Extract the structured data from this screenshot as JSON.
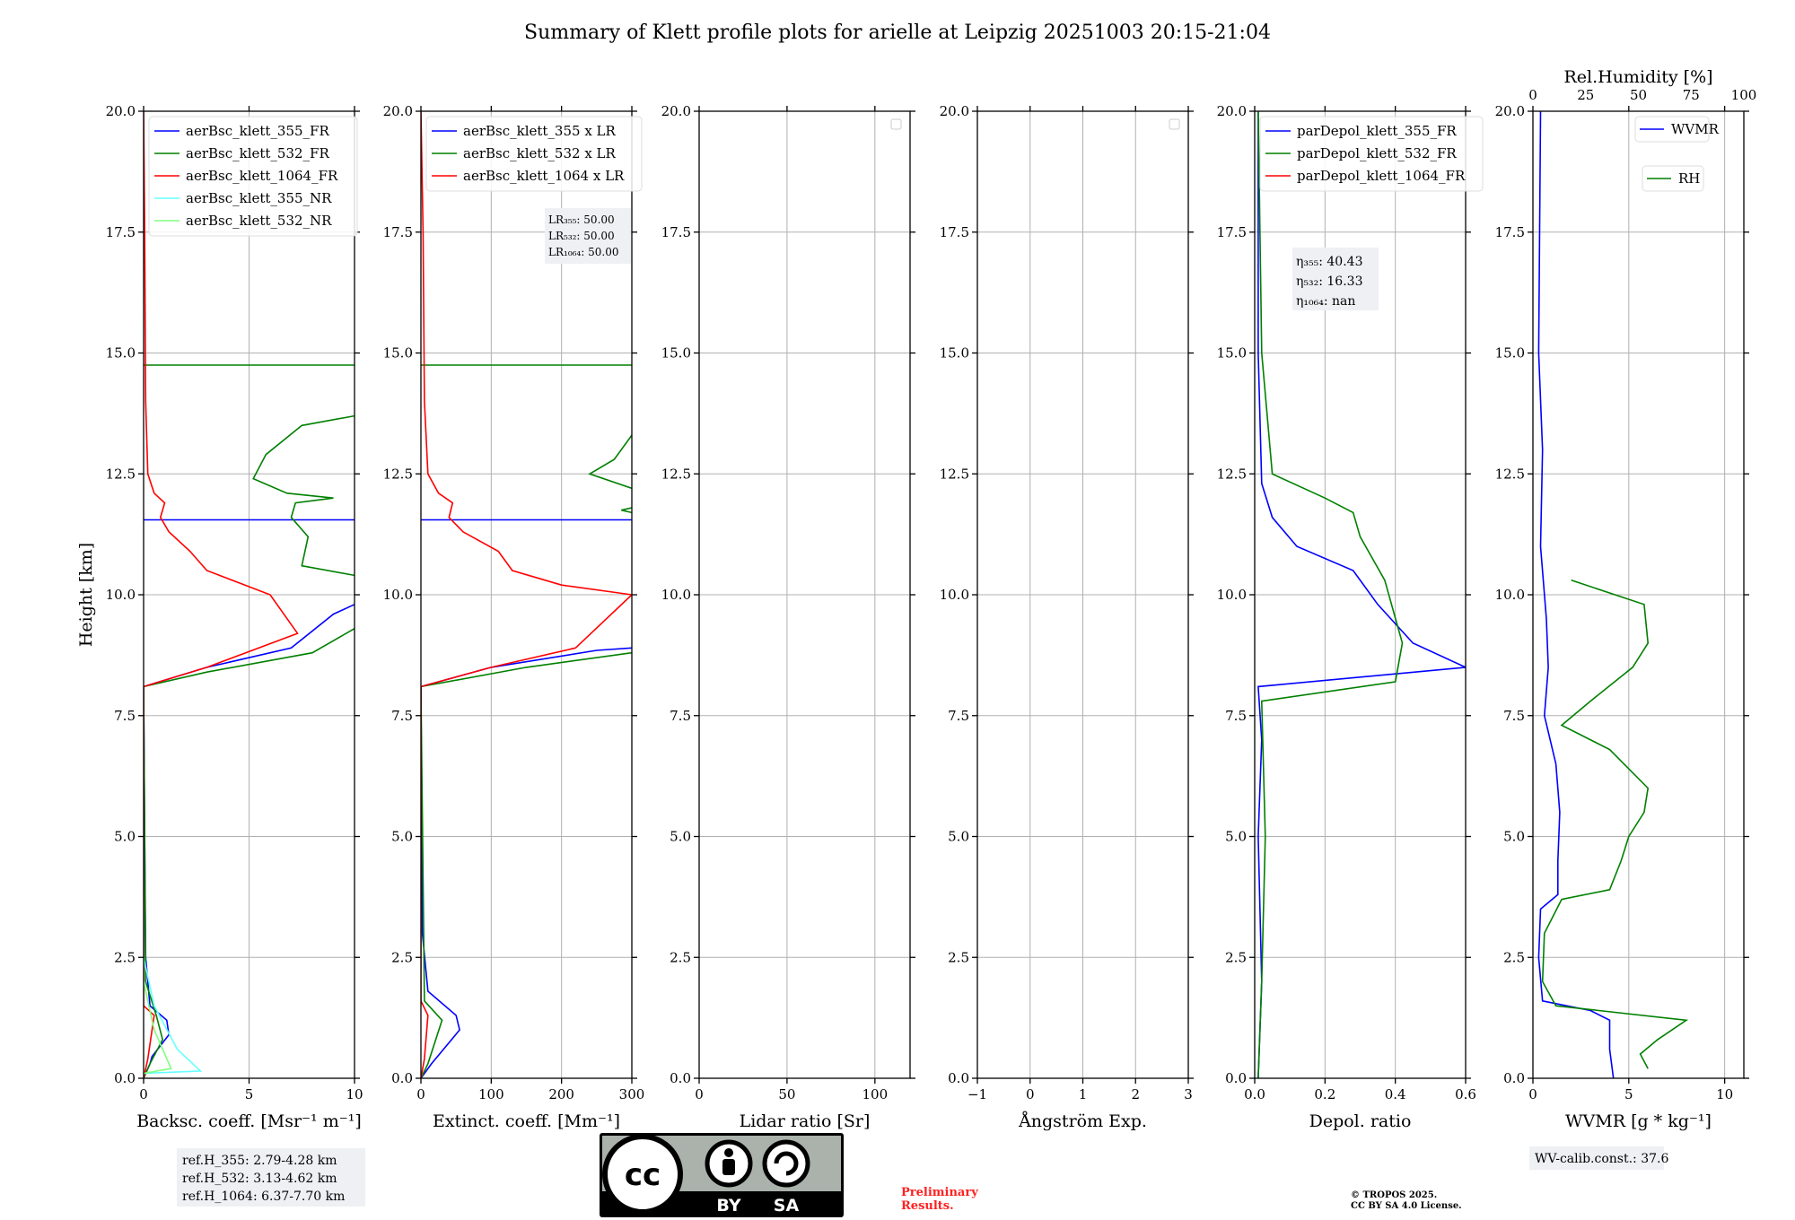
{
  "title": "Summary of Klett profile plots for arielle at Leipzig 20251003 20:15-21:04",
  "colors": {
    "blue": "#0000ff",
    "green": "#008000",
    "red": "#ff0000",
    "cyan": "#66ffff",
    "lightgreen": "#80ff80",
    "grid": "#b0b0b0",
    "box": "#eef0f3"
  },
  "chart_data": [
    {
      "type": "line",
      "id": "bsc",
      "xlabel": "Backsc. coeff. [Msr⁻¹ m⁻¹]",
      "ylabel": "Height [km]",
      "xlim": [
        0,
        10
      ],
      "ylim": [
        0,
        20
      ],
      "xticks": [
        "0",
        "5",
        "10"
      ],
      "yticks": [
        "0.0",
        "2.5",
        "5.0",
        "7.5",
        "10.0",
        "12.5",
        "15.0",
        "17.5",
        "20.0"
      ],
      "legend": [
        "aerBsc_klett_355_FR",
        "aerBsc_klett_532_FR",
        "aerBsc_klett_1064_FR",
        "aerBsc_klett_355_NR",
        "aerBsc_klett_532_NR"
      ],
      "legend_colors": [
        "blue",
        "green",
        "red",
        "cyan",
        "lightgreen"
      ],
      "series": [
        {
          "name": "aerBsc_klett_355_FR",
          "color": "blue",
          "points": [
            [
              0,
              0
            ],
            [
              0.3,
              0.3
            ],
            [
              0.4,
              0.45
            ],
            [
              1.2,
              0.9
            ],
            [
              1.1,
              1.2
            ],
            [
              0.3,
              1.5
            ],
            [
              0.1,
              2.5
            ],
            [
              0.05,
              5
            ],
            [
              0,
              8.1
            ],
            [
              3,
              8.5
            ],
            [
              7,
              8.9
            ],
            [
              9,
              9.6
            ],
            [
              10,
              9.8
            ]
          ]
        },
        {
          "name": "aerBsc_klett_355_FR_cirrus",
          "color": "blue",
          "points": [
            [
              0,
              11.55
            ],
            [
              10,
              11.55
            ]
          ]
        },
        {
          "name": "aerBsc_klett_532_FR",
          "color": "green",
          "points": [
            [
              0,
              0
            ],
            [
              0.3,
              0.3
            ],
            [
              0.9,
              0.8
            ],
            [
              0.6,
              1.3
            ],
            [
              0.1,
              2
            ],
            [
              0,
              8.1
            ],
            [
              3,
              8.4
            ],
            [
              8,
              8.8
            ],
            [
              10,
              9.3
            ]
          ]
        },
        {
          "name": "aerBsc_klett_532_FR_cirrus",
          "color": "green",
          "points": [
            [
              10,
              10.4
            ],
            [
              7.5,
              10.6
            ],
            [
              7.8,
              11.2
            ],
            [
              7,
              11.6
            ],
            [
              7.2,
              11.9
            ],
            [
              9,
              12
            ],
            [
              6.8,
              12.1
            ],
            [
              5.2,
              12.4
            ],
            [
              5.8,
              12.9
            ],
            [
              7.5,
              13.5
            ],
            [
              10,
              13.7
            ]
          ]
        },
        {
          "name": "aerBsc_klett_532_FR_top",
          "color": "green",
          "points": [
            [
              0,
              14.75
            ],
            [
              10,
              14.75
            ]
          ]
        },
        {
          "name": "aerBsc_klett_1064_FR",
          "color": "red",
          "points": [
            [
              0,
              0
            ],
            [
              0.2,
              0.4
            ],
            [
              0.5,
              1.3
            ],
            [
              0,
              1.5
            ],
            [
              0,
              8.1
            ],
            [
              3,
              8.5
            ],
            [
              7.3,
              9.2
            ],
            [
              6,
              10
            ],
            [
              3,
              10.5
            ],
            [
              2.2,
              10.9
            ],
            [
              1.2,
              11.3
            ],
            [
              0.8,
              11.6
            ],
            [
              1,
              11.9
            ],
            [
              0.5,
              12.1
            ],
            [
              0.2,
              12.5
            ],
            [
              0.1,
              14
            ],
            [
              0.05,
              17.5
            ],
            [
              0,
              20
            ]
          ]
        },
        {
          "name": "aerBsc_klett_355_NR",
          "color": "cyan",
          "points": [
            [
              0,
              0.1
            ],
            [
              2.7,
              0.15
            ],
            [
              1.6,
              0.6
            ],
            [
              0.5,
              1.5
            ],
            [
              0,
              2.5
            ]
          ]
        },
        {
          "name": "aerBsc_klett_532_NR",
          "color": "lightgreen",
          "points": [
            [
              0,
              0.1
            ],
            [
              1.3,
              0.2
            ],
            [
              0.5,
              1
            ],
            [
              0,
              2
            ]
          ]
        }
      ]
    },
    {
      "type": "line",
      "id": "ext",
      "xlabel": "Extinct. coeff. [Mm⁻¹]",
      "xlim": [
        0,
        300
      ],
      "ylim": [
        0,
        20
      ],
      "xticks": [
        "0",
        "100",
        "200",
        "300"
      ],
      "yticks": [
        "0.0",
        "2.5",
        "5.0",
        "7.5",
        "10.0",
        "12.5",
        "15.0",
        "17.5",
        "20.0"
      ],
      "legend": [
        "aerBsc_klett_355 x LR",
        "aerBsc_klett_532 x LR",
        "aerBsc_klett_1064 x LR"
      ],
      "legend_colors": [
        "blue",
        "green",
        "red"
      ],
      "lr_box": [
        "LR₃₅₅: 50.00",
        "LR₅₃₂: 50.00",
        "LR₁₀₆₄: 50.00"
      ],
      "series": [
        {
          "name": "ext_355",
          "color": "blue",
          "points": [
            [
              0,
              0
            ],
            [
              15,
              0.3
            ],
            [
              55,
              1
            ],
            [
              50,
              1.3
            ],
            [
              10,
              1.8
            ],
            [
              2,
              3
            ],
            [
              0,
              8.1
            ],
            [
              100,
              8.5
            ],
            [
              250,
              8.85
            ],
            [
              300,
              8.9
            ]
          ]
        },
        {
          "name": "ext_355_cirrus",
          "color": "blue",
          "points": [
            [
              0,
              11.55
            ],
            [
              300,
              11.55
            ]
          ]
        },
        {
          "name": "ext_532",
          "color": "green",
          "points": [
            [
              0,
              0
            ],
            [
              10,
              0.3
            ],
            [
              30,
              1.2
            ],
            [
              5,
              1.6
            ],
            [
              0,
              8.1
            ],
            [
              150,
              8.5
            ],
            [
              300,
              8.8
            ]
          ]
        },
        {
          "name": "ext_532_cirrus",
          "color": "green",
          "points": [
            [
              300,
              11.7
            ],
            [
              285,
              11.75
            ],
            [
              300,
              11.8
            ]
          ]
        },
        {
          "name": "ext_532_cirrus2",
          "color": "green",
          "points": [
            [
              300,
              12.2
            ],
            [
              240,
              12.5
            ],
            [
              275,
              12.8
            ],
            [
              300,
              13.3
            ]
          ]
        },
        {
          "name": "ext_532_top",
          "color": "green",
          "points": [
            [
              0,
              14.75
            ],
            [
              300,
              14.75
            ]
          ]
        },
        {
          "name": "ext_1064",
          "color": "red",
          "points": [
            [
              0,
              0
            ],
            [
              5,
              0.4
            ],
            [
              10,
              1.3
            ],
            [
              0,
              1.6
            ],
            [
              0,
              8.1
            ],
            [
              100,
              8.5
            ],
            [
              220,
              8.9
            ],
            [
              300,
              10
            ],
            [
              200,
              10.2
            ],
            [
              130,
              10.5
            ],
            [
              110,
              10.9
            ],
            [
              60,
              11.3
            ],
            [
              40,
              11.6
            ],
            [
              45,
              11.9
            ],
            [
              25,
              12.1
            ],
            [
              10,
              12.5
            ],
            [
              5,
              14
            ],
            [
              3,
              17.5
            ],
            [
              0,
              20
            ]
          ]
        }
      ]
    },
    {
      "type": "line",
      "id": "lr",
      "xlabel": "Lidar ratio [Sr]",
      "xlim": [
        0,
        120
      ],
      "ylim": [
        0,
        20
      ],
      "xticks": [
        "0",
        "50",
        "100"
      ],
      "yticks": [
        "0.0",
        "2.5",
        "5.0",
        "7.5",
        "10.0",
        "12.5",
        "15.0",
        "17.5",
        "20.0"
      ],
      "series": []
    },
    {
      "type": "line",
      "id": "ae",
      "xlabel": "Ångström Exp.",
      "xlim": [
        -1,
        3
      ],
      "ylim": [
        0,
        20
      ],
      "xticks": [
        "−1",
        "0",
        "1",
        "2",
        "3"
      ],
      "yticks": [
        "0.0",
        "2.5",
        "5.0",
        "7.5",
        "10.0",
        "12.5",
        "15.0",
        "17.5",
        "20.0"
      ],
      "series": []
    },
    {
      "type": "line",
      "id": "dep",
      "xlabel": "Depol. ratio",
      "xlim": [
        0,
        0.6
      ],
      "ylim": [
        0,
        20
      ],
      "xticks": [
        "0.0",
        "0.2",
        "0.4",
        "0.6"
      ],
      "yticks": [
        "0.0",
        "2.5",
        "5.0",
        "7.5",
        "10.0",
        "12.5",
        "15.0",
        "17.5",
        "20.0"
      ],
      "legend": [
        "parDepol_klett_355_FR",
        "parDepol_klett_532_FR",
        "parDepol_klett_1064_FR"
      ],
      "legend_colors": [
        "blue",
        "green",
        "red"
      ],
      "eta_box": [
        "η₃₅₅: 40.43",
        "η₅₃₂: 16.33",
        "η₁₀₆₄: nan"
      ],
      "series": [
        {
          "name": "dep_355",
          "color": "blue",
          "points": [
            [
              0.01,
              0
            ],
            [
              0.02,
              2
            ],
            [
              0.01,
              5
            ],
            [
              0.02,
              7
            ],
            [
              0.01,
              8.1
            ],
            [
              0.6,
              8.5
            ],
            [
              0.45,
              9
            ],
            [
              0.35,
              9.8
            ],
            [
              0.28,
              10.5
            ],
            [
              0.12,
              11
            ],
            [
              0.05,
              11.6
            ],
            [
              0.02,
              12.3
            ],
            [
              0.01,
              15
            ],
            [
              0.01,
              20
            ]
          ]
        },
        {
          "name": "dep_532",
          "color": "green",
          "points": [
            [
              0.01,
              0
            ],
            [
              0.02,
              2
            ],
            [
              0.03,
              5
            ],
            [
              0.02,
              7.8
            ],
            [
              0.4,
              8.2
            ],
            [
              0.42,
              9
            ],
            [
              0.37,
              10.3
            ],
            [
              0.3,
              11.2
            ],
            [
              0.28,
              11.7
            ],
            [
              0.2,
              12
            ],
            [
              0.05,
              12.5
            ],
            [
              0.02,
              15
            ],
            [
              0.01,
              20
            ]
          ]
        }
      ]
    },
    {
      "type": "line",
      "id": "wv",
      "xlabel": "WVMR [g * kg⁻¹]",
      "top_xlabel": "Rel.Humidity [%]",
      "xlim": [
        0,
        11
      ],
      "ylim": [
        0,
        20
      ],
      "xticks": [
        "0",
        "5",
        "10"
      ],
      "top_xticks": [
        "0",
        "25",
        "50",
        "75",
        "100"
      ],
      "yticks": [
        "0.0",
        "2.5",
        "5.0",
        "7.5",
        "10.0",
        "12.5",
        "15.0",
        "17.5",
        "20.0"
      ],
      "legend": [
        "WVMR",
        "RH"
      ],
      "legend_colors": [
        "blue",
        "green"
      ],
      "wv_box": "WV-calib.const.: 37.6",
      "series": [
        {
          "name": "WVMR",
          "color": "blue",
          "points": [
            [
              4.2,
              0
            ],
            [
              4,
              0.6
            ],
            [
              4,
              1.2
            ],
            [
              3,
              1.4
            ],
            [
              0.5,
              1.6
            ],
            [
              0.3,
              2.5
            ],
            [
              0.4,
              3.5
            ],
            [
              1.3,
              3.8
            ],
            [
              1.3,
              4.5
            ],
            [
              1.4,
              5.5
            ],
            [
              1.2,
              6.5
            ],
            [
              0.6,
              7.5
            ],
            [
              0.8,
              8.5
            ],
            [
              0.7,
              9.5
            ],
            [
              0.4,
              11
            ],
            [
              0.5,
              13
            ],
            [
              0.3,
              15
            ],
            [
              0.4,
              20
            ]
          ]
        },
        {
          "name": "RH",
          "color": "green",
          "points": [
            [
              6,
              0.2
            ],
            [
              5.6,
              0.5
            ],
            [
              6.5,
              0.8
            ],
            [
              8,
              1.2
            ],
            [
              1.2,
              1.5
            ],
            [
              0.5,
              2
            ],
            [
              0.6,
              3
            ],
            [
              1.5,
              3.7
            ],
            [
              4,
              3.9
            ],
            [
              4.6,
              4.5
            ],
            [
              5,
              5
            ],
            [
              5.8,
              5.5
            ],
            [
              6,
              6
            ],
            [
              4,
              6.8
            ],
            [
              1.5,
              7.3
            ],
            [
              3,
              7.8
            ],
            [
              5.2,
              8.5
            ],
            [
              6,
              9
            ],
            [
              5.8,
              9.8
            ],
            [
              2,
              10.3
            ]
          ]
        }
      ]
    }
  ],
  "ref_box": [
    "ref.H_355: 2.79-4.28 km",
    "ref.H_532: 3.13-4.62 km",
    "ref.H_1064: 6.37-7.70 km"
  ],
  "license_badge": {
    "cc": "cc",
    "by": "BY",
    "sa": "SA"
  },
  "preliminary": "Preliminary\nResults.",
  "copyright": "© TROPOS 2025.\nCC BY SA 4.0 License."
}
